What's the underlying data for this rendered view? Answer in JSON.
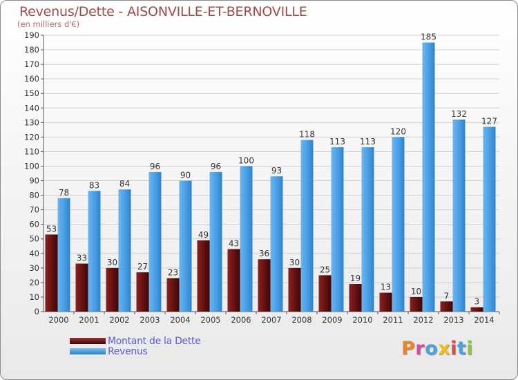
{
  "header": {
    "title": "Revenus/Dette - AISONVILLE-ET-BERNOVILLE",
    "subtitle": "(en milliers d'€)"
  },
  "legend": {
    "debt_label": "Montant de la Dette",
    "revenue_label": "Revenus"
  },
  "logo": {
    "text": "Proxiti",
    "colors": [
      "#e8862a",
      "#d94b9a",
      "#4aa3df",
      "#e8c21a",
      "#d94b4b",
      "#4aa3df",
      "#8cc63f"
    ]
  },
  "colors": {
    "debt": "#7a1a1a",
    "revenue": "#4a9fe6",
    "axis": "#555555",
    "grid": "#d0d0d0"
  },
  "chart_data": {
    "type": "bar",
    "title": "Revenus/Dette - AISONVILLE-ET-BERNOVILLE",
    "subtitle": "(en milliers d'€)",
    "categories": [
      "2000",
      "2001",
      "2002",
      "2003",
      "2004",
      "2005",
      "2006",
      "2007",
      "2008",
      "2009",
      "2010",
      "2011",
      "2012",
      "2013",
      "2014"
    ],
    "series": [
      {
        "name": "Montant de la Dette",
        "values": [
          53,
          33,
          30,
          27,
          23,
          49,
          43,
          36,
          30,
          25,
          19,
          13,
          10,
          7,
          3
        ]
      },
      {
        "name": "Revenus",
        "values": [
          78,
          83,
          84,
          96,
          90,
          96,
          100,
          93,
          118,
          113,
          113,
          120,
          185,
          132,
          127
        ]
      }
    ],
    "ylim": [
      0,
      190
    ],
    "yticks": [
      0,
      10,
      20,
      30,
      40,
      50,
      60,
      70,
      80,
      90,
      100,
      110,
      120,
      130,
      140,
      150,
      160,
      170,
      180,
      190
    ],
    "grid": true,
    "legend_position": "bottom-left"
  }
}
